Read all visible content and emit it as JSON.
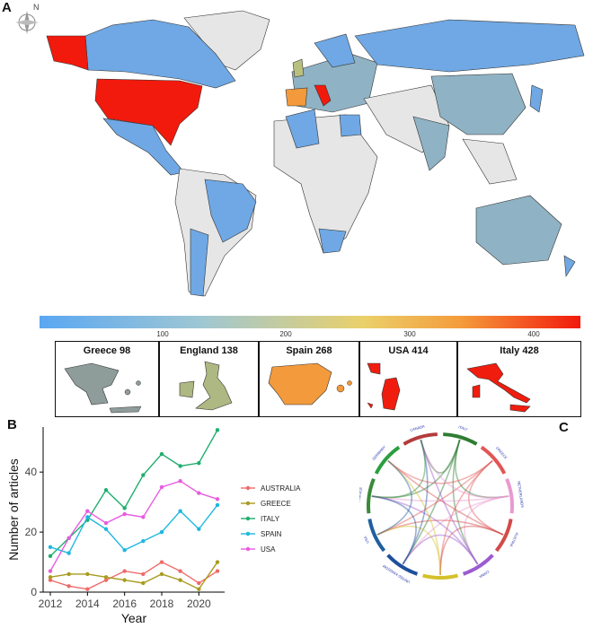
{
  "panels": {
    "a": "A",
    "b": "B",
    "c": "C"
  },
  "compass": {
    "label": "N"
  },
  "colorbar": {
    "ticks": [
      "100",
      "200",
      "300",
      "400"
    ],
    "colors": [
      "#5aa7f2",
      "#9fc7d3",
      "#ead06a",
      "#f59b3b",
      "#f21a0c"
    ]
  },
  "insets": [
    {
      "label": "Greece 98",
      "color": "#8e9c9a"
    },
    {
      "label": "England 138",
      "color": "#aeb882"
    },
    {
      "label": "Spain 268",
      "color": "#f29a3c"
    },
    {
      "label": "USA 414",
      "color": "#f01d0e"
    },
    {
      "label": "Italy 428",
      "color": "#f01d0e"
    }
  ],
  "map_colors": {
    "none": "#e6e6e6",
    "low": "#6fa8e4",
    "mid": "#8fb3c4",
    "usa": "#f21a0c",
    "alaska": "#f21a0c",
    "italy": "#f21a0c",
    "spain": "#f29a3c",
    "uk": "#b9c07f"
  },
  "chart_data": {
    "type": "line",
    "x": [
      2012,
      2013,
      2014,
      2015,
      2016,
      2017,
      2018,
      2019,
      2020,
      2021
    ],
    "xlabel": "Year",
    "ylabel": "Number of articles",
    "xticks": [
      2012,
      2014,
      2016,
      2018,
      2020
    ],
    "yticks": [
      0,
      20,
      40
    ],
    "ylim": [
      0,
      55
    ],
    "legend_position": "right",
    "series": [
      {
        "name": "AUSTRALIA",
        "color": "#f06a6a",
        "values": [
          4,
          2,
          1,
          4,
          7,
          6,
          10,
          7,
          3,
          7
        ]
      },
      {
        "name": "GREECE",
        "color": "#a89b1e",
        "values": [
          5,
          6,
          6,
          5,
          4,
          3,
          6,
          4,
          1,
          10
        ]
      },
      {
        "name": "ITALY",
        "color": "#1fae6e",
        "values": [
          12,
          18,
          24,
          34,
          28,
          39,
          46,
          42,
          43,
          54
        ]
      },
      {
        "name": "SPAIN",
        "color": "#1fb7e0",
        "values": [
          15,
          13,
          25,
          21,
          14,
          17,
          20,
          27,
          21,
          29
        ]
      },
      {
        "name": "USA",
        "color": "#e85ce0",
        "values": [
          7,
          18,
          27,
          23,
          26,
          25,
          35,
          37,
          33,
          31
        ]
      }
    ]
  },
  "chord": {
    "labels": [
      "ITALY",
      "GREECE",
      "NETHERLANDS",
      "AUSTRIA",
      "CHINA",
      "SPAIN",
      "UNITED KINGDOM",
      "USA",
      "FRANCE",
      "GERMANY",
      "CANADA"
    ],
    "colors": [
      "#2e7d32",
      "#e25555",
      "#e89ad0",
      "#d24a4a",
      "#9b5bd1",
      "#d4c12a",
      "#1e4f9c",
      "#1f5fa0",
      "#3a8a3a",
      "#2b9f3f",
      "#b43b3b"
    ]
  }
}
